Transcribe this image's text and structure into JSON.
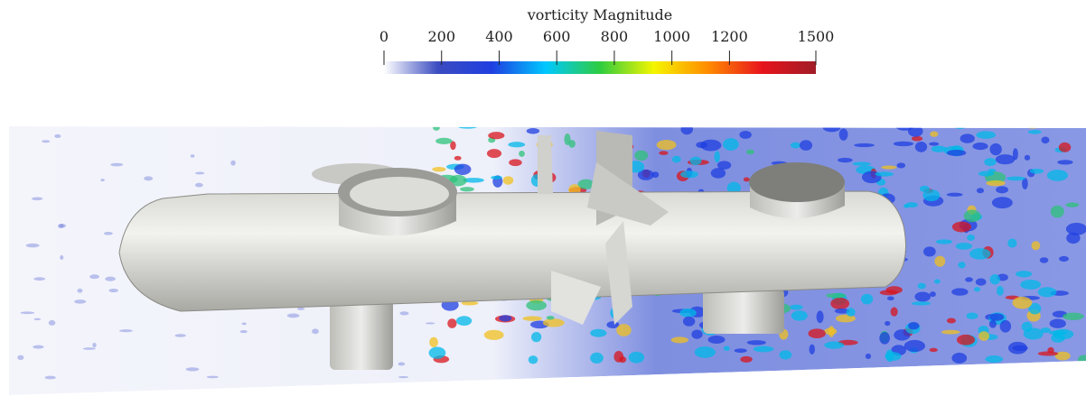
{
  "colorbar": {
    "title": "vorticity Magnitude",
    "range": [
      0,
      1500
    ],
    "ticks": [
      0,
      200,
      400,
      600,
      800,
      1000,
      1200,
      1500
    ],
    "colors": [
      "#ffffff",
      "#3b4cc0",
      "#1f3fe0",
      "#00c8ff",
      "#2ecc40",
      "#f5f500",
      "#ff8c00",
      "#e8141c",
      "#a01c28"
    ]
  }
}
